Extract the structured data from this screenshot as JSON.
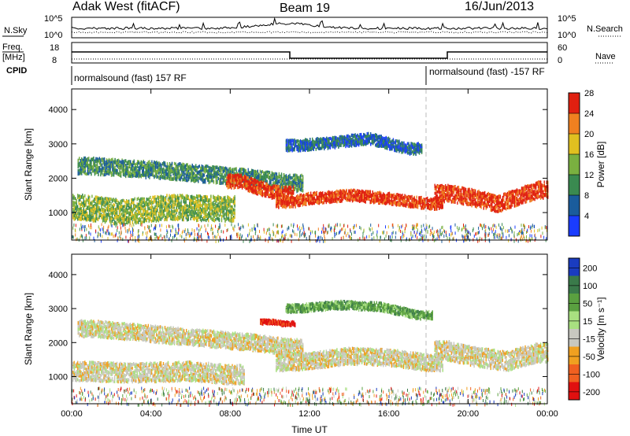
{
  "header": {
    "station": "Adak West (fitACF)",
    "beam": "Beam 19",
    "date": "16/Jun/2013"
  },
  "panels": {
    "nsky_label": "N.Sky",
    "nsky_ticks": [
      "10^5",
      "10^0"
    ],
    "nsearch_label": "N.Search",
    "nsearch_ticks": [
      "10^5",
      "10^0"
    ],
    "freq_label_1": "Freq.",
    "freq_label_2": "[MHz]",
    "freq_ticks": [
      "18",
      "8"
    ],
    "nave_label": "Nave",
    "nave_ticks": [
      "60",
      "0"
    ],
    "cpid_label": "CPID",
    "cpid_segments": [
      "normalsound (fast) 157 RF",
      "normalsound (fast) -157 RF"
    ]
  },
  "chart_data": [
    {
      "type": "heatmap",
      "name": "power",
      "ylabel": "Slant Range [km]",
      "yticks": [
        "1000",
        "2000",
        "3000",
        "4000"
      ],
      "xticks": [
        "00:00",
        "04:00",
        "08:00",
        "12:00",
        "16:00",
        "20:00",
        "00:00"
      ],
      "colorbar_label": "Power [dB]",
      "colorbar_ticks": [
        "4",
        "8",
        "12",
        "16",
        "20",
        "24",
        "28"
      ],
      "colors": [
        "#1a3cff",
        "#1a5c9c",
        "#3a8a50",
        "#7ab040",
        "#e0c020",
        "#f08020",
        "#e02010"
      ],
      "bands": [
        {
          "x": [
            1.0,
            5.0,
            9.0,
            11.0
          ],
          "y": [
            2400,
            2250,
            2050,
            1900
          ],
          "width": 300,
          "level": 2
        },
        {
          "x": [
            8.5,
            9.5,
            10.5
          ],
          "y": [
            1950,
            1750,
            1600
          ],
          "width": 250,
          "level": 6
        },
        {
          "x": [
            11.0,
            12.0,
            14.0,
            16.0,
            18.0
          ],
          "y": [
            1350,
            1450,
            1550,
            1450,
            1300
          ],
          "width": 200,
          "level": 6
        },
        {
          "x": [
            19.0,
            20.0,
            21.5,
            22.5,
            23.5
          ],
          "y": [
            1600,
            1500,
            1300,
            1500,
            1700
          ],
          "width": 300,
          "level": 6
        },
        {
          "x": [
            0.5,
            2.5,
            5.0,
            7.5
          ],
          "y": [
            1200,
            1050,
            1200,
            1150
          ],
          "width": 450,
          "level": 3
        },
        {
          "x": [
            11.5,
            13.5,
            15.0,
            17.0
          ],
          "y": [
            3000,
            3100,
            3200,
            2900
          ],
          "width": 200,
          "level": 1
        }
      ]
    },
    {
      "type": "heatmap",
      "name": "velocity",
      "ylabel": "Slant Range [km]",
      "yticks": [
        "1000",
        "2000",
        "3000",
        "4000"
      ],
      "xticks": [
        "00:00",
        "04:00",
        "08:00",
        "12:00",
        "16:00",
        "20:00",
        "00:00"
      ],
      "xlabel": "Time UT",
      "colorbar_label": "Velocity [m s⁻¹]",
      "colorbar_ticks": [
        "200",
        "100",
        "50",
        "15",
        "-15",
        "-50",
        "-100",
        "-200"
      ],
      "colors": [
        "#1a3cc0",
        "#3a7a4a",
        "#5aa040",
        "#a8e080",
        "#c8c8c0",
        "#f0a020",
        "#f06020",
        "#e01010"
      ],
      "bands": [
        {
          "x": [
            1.0,
            5.0,
            9.0,
            11.0
          ],
          "y": [
            2450,
            2250,
            2050,
            1900
          ],
          "width": 300,
          "level": 4
        },
        {
          "x": [
            11.0,
            12.0,
            14.0,
            16.0,
            18.0
          ],
          "y": [
            1450,
            1500,
            1650,
            1600,
            1450
          ],
          "width": 300,
          "level": 4
        },
        {
          "x": [
            19.0,
            20.5,
            22.0,
            23.5
          ],
          "y": [
            1800,
            1600,
            1500,
            1750
          ],
          "width": 350,
          "level": 4
        },
        {
          "x": [
            0.5,
            3.0,
            6.0,
            8.0
          ],
          "y": [
            1200,
            1150,
            1200,
            1100
          ],
          "width": 350,
          "level": 4
        },
        {
          "x": [
            11.5,
            13.5,
            15.5,
            17.5
          ],
          "y": [
            3050,
            3150,
            3100,
            2850
          ],
          "width": 150,
          "level": 2
        },
        {
          "x": [
            10.2,
            10.6
          ],
          "y": [
            2650,
            2600
          ],
          "width": 80,
          "level": 7
        }
      ]
    }
  ]
}
